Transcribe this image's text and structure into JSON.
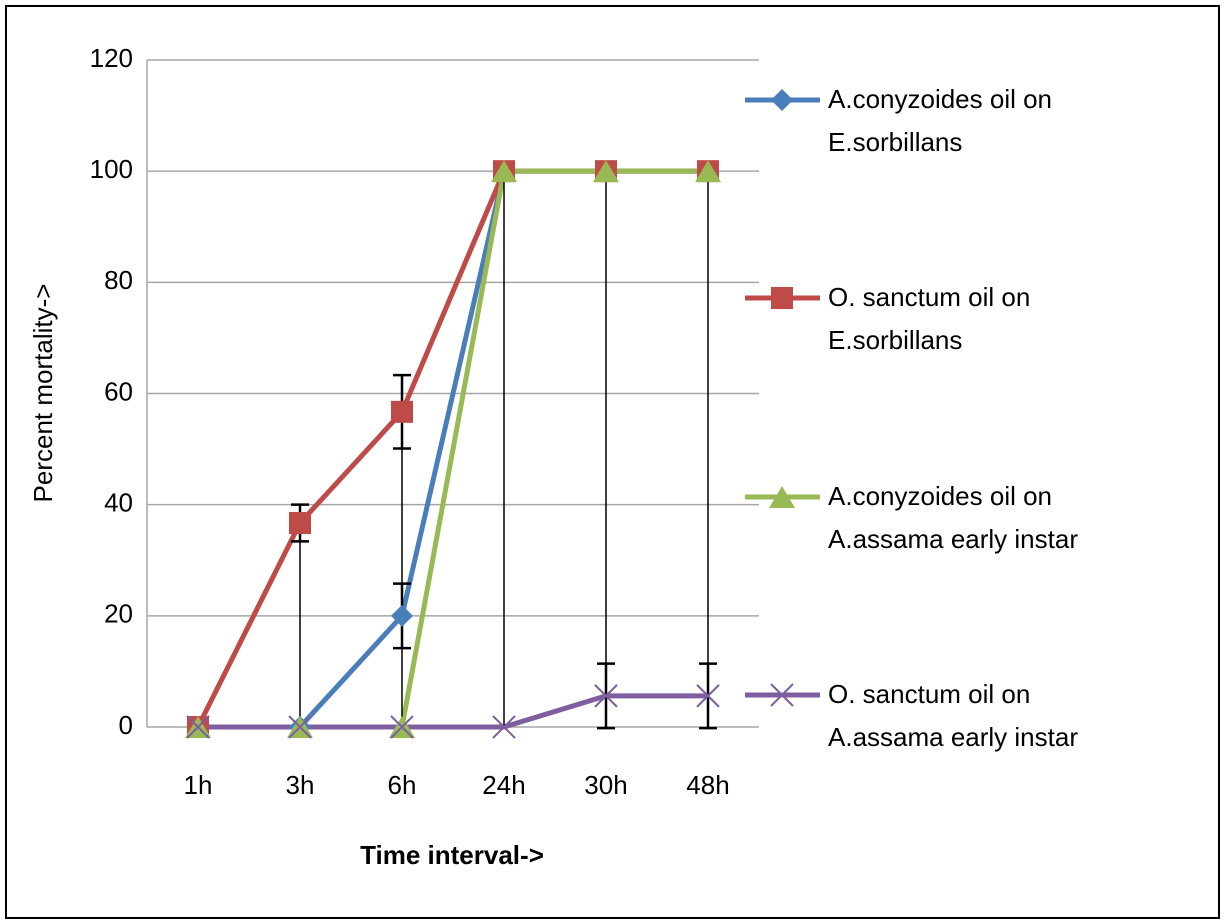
{
  "chart_data": {
    "type": "line",
    "y_label": "Percent mortality->",
    "x_label": "Time interval->",
    "categories": [
      "1h",
      "3h",
      "6h",
      "24h",
      "30h",
      "48h"
    ],
    "series": [
      {
        "name": "A.conyzoides oil on E.sorbillans",
        "color": "#4a7ebb",
        "marker": "diamond",
        "values": [
          0,
          0,
          20,
          100,
          100,
          100
        ],
        "errors": [
          null,
          null,
          5.8,
          null,
          null,
          null
        ]
      },
      {
        "name": "O. sanctum oil on E.sorbillans",
        "color": "#be4b48",
        "marker": "square",
        "values": [
          0,
          36.7,
          56.7,
          100,
          100,
          100
        ],
        "errors": [
          null,
          3.3,
          6.6,
          null,
          null,
          null
        ]
      },
      {
        "name": "A.conyzoides oil on A.assama early instar",
        "color": "#98b954",
        "marker": "triangle",
        "values": [
          0,
          0,
          0,
          100,
          100,
          100
        ],
        "errors": [
          null,
          null,
          null,
          null,
          null,
          null
        ]
      },
      {
        "name": "O. sanctum oil on A.assama early instar",
        "color": "#7d5fa0",
        "marker": "x",
        "values": [
          0,
          0,
          0,
          0,
          5.6,
          5.6
        ],
        "errors": [
          null,
          null,
          null,
          null,
          5.8,
          5.8
        ]
      }
    ],
    "ylim": [
      0,
      120
    ],
    "yticks": [
      0,
      20,
      40,
      60,
      80,
      100,
      120
    ],
    "grid": true,
    "drop_lines": true,
    "legend": "right"
  }
}
